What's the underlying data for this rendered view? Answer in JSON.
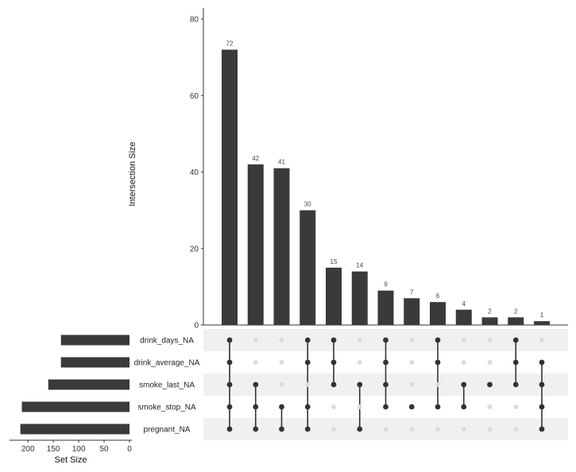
{
  "chart_data": {
    "type": "bar",
    "ylabel": "Intersection Size",
    "ylim": [
      0,
      80
    ],
    "yticks": [
      0,
      20,
      40,
      60,
      80
    ],
    "bar_color": "#3a3a3a",
    "dot_active_color": "#333333",
    "dot_inactive_color": "#dcdcdc",
    "stripe_color": "#f0f0f0",
    "sets": [
      "drink_days_NA",
      "drink_average_NA",
      "smoke_last_NA",
      "smoke_stop_NA",
      "pregnant_NA"
    ],
    "set_sizes": [
      135,
      135,
      160,
      212,
      215
    ],
    "set_size_xlabel": "Set Size",
    "set_size_xlim": [
      0,
      230
    ],
    "set_size_ticks": [
      200,
      150,
      100,
      50,
      0
    ],
    "intersections": [
      {
        "size": 72,
        "sets": [
          "drink_days_NA",
          "drink_average_NA",
          "smoke_last_NA",
          "smoke_stop_NA",
          "pregnant_NA"
        ]
      },
      {
        "size": 42,
        "sets": [
          "smoke_last_NA",
          "smoke_stop_NA",
          "pregnant_NA"
        ]
      },
      {
        "size": 41,
        "sets": [
          "smoke_stop_NA",
          "pregnant_NA"
        ]
      },
      {
        "size": 30,
        "sets": [
          "drink_days_NA",
          "drink_average_NA",
          "smoke_stop_NA",
          "pregnant_NA"
        ]
      },
      {
        "size": 15,
        "sets": [
          "drink_days_NA",
          "drink_average_NA",
          "smoke_last_NA"
        ]
      },
      {
        "size": 14,
        "sets": [
          "smoke_last_NA",
          "pregnant_NA"
        ]
      },
      {
        "size": 9,
        "sets": [
          "drink_days_NA",
          "drink_average_NA",
          "smoke_last_NA",
          "smoke_stop_NA"
        ]
      },
      {
        "size": 7,
        "sets": [
          "smoke_stop_NA"
        ]
      },
      {
        "size": 6,
        "sets": [
          "drink_days_NA",
          "drink_average_NA",
          "smoke_stop_NA"
        ]
      },
      {
        "size": 4,
        "sets": [
          "smoke_last_NA",
          "smoke_stop_NA"
        ]
      },
      {
        "size": 2,
        "sets": [
          "smoke_last_NA"
        ]
      },
      {
        "size": 2,
        "sets": [
          "drink_days_NA",
          "drink_average_NA",
          "smoke_last_NA"
        ]
      },
      {
        "size": 1,
        "sets": [
          "drink_average_NA",
          "smoke_last_NA",
          "smoke_stop_NA",
          "pregnant_NA"
        ]
      }
    ]
  }
}
